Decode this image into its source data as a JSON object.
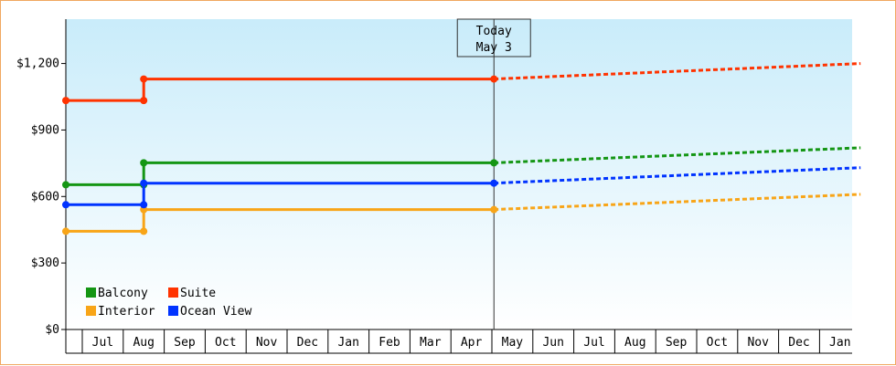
{
  "chart_data": {
    "type": "line",
    "title": "",
    "xlabel": "",
    "ylabel": "",
    "ylim": [
      0,
      1400
    ],
    "y_ticks": [
      {
        "value": 0,
        "label": "$0"
      },
      {
        "value": 300,
        "label": "$300"
      },
      {
        "value": 600,
        "label": "$600"
      },
      {
        "value": 900,
        "label": "$900"
      },
      {
        "value": 1200,
        "label": "$1,200"
      }
    ],
    "x_tick_labels": [
      "Jul",
      "Aug",
      "Sep",
      "Oct",
      "Nov",
      "Dec",
      "Jan",
      "Feb",
      "Mar",
      "Apr",
      "May",
      "Jun",
      "Jul",
      "Aug",
      "Sep",
      "Oct",
      "Nov",
      "Dec",
      "Jan"
    ],
    "x_domain": [
      0,
      19
    ],
    "grid": false,
    "background_gradient": [
      "#c9ecfa",
      "#ffffff"
    ],
    "today_marker": {
      "line1": "Today",
      "line2": "May 3",
      "x": 10.05
    },
    "legend_placement": "bottom-left",
    "series": [
      {
        "name": "Balcony",
        "color": "#149614",
        "history": [
          [
            0,
            653
          ],
          [
            1.5,
            653
          ],
          [
            1.5,
            752
          ],
          [
            10.05,
            752
          ]
        ],
        "forecast": [
          [
            10.05,
            752
          ],
          [
            19,
            820
          ]
        ]
      },
      {
        "name": "Suite",
        "color": "#ff3300",
        "history": [
          [
            0,
            1033
          ],
          [
            1.5,
            1033
          ],
          [
            1.5,
            1130
          ],
          [
            10.05,
            1130
          ]
        ],
        "forecast": [
          [
            10.05,
            1130
          ],
          [
            19,
            1200
          ]
        ]
      },
      {
        "name": "Interior",
        "color": "#f8a518",
        "history": [
          [
            0,
            443
          ],
          [
            1.5,
            443
          ],
          [
            1.5,
            541
          ],
          [
            10.05,
            541
          ]
        ],
        "forecast": [
          [
            10.05,
            541
          ],
          [
            19,
            610
          ]
        ]
      },
      {
        "name": "Ocean View",
        "color": "#0033ff",
        "history": [
          [
            0,
            563
          ],
          [
            1.5,
            563
          ],
          [
            1.5,
            660
          ],
          [
            10.05,
            660
          ]
        ],
        "forecast": [
          [
            10.05,
            660
          ],
          [
            19,
            730
          ]
        ]
      }
    ]
  }
}
